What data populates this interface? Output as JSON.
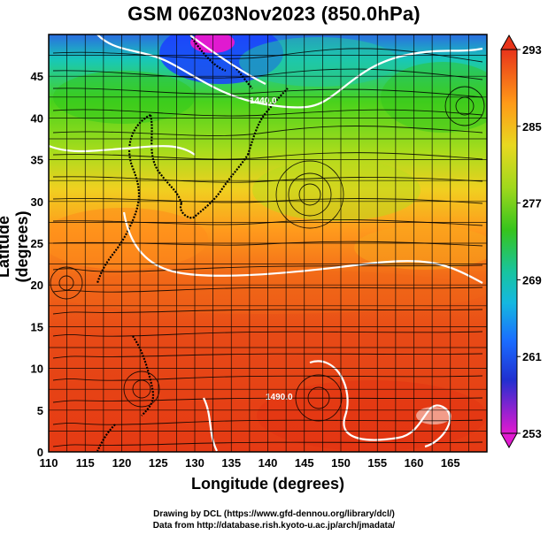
{
  "title": "GSM 06Z03Nov2023 (850.0hPa)",
  "axes": {
    "xlabel": "Longitude (degrees)",
    "ylabel": "Latitude  (degrees)",
    "x_ticks": [
      "110",
      "115",
      "120",
      "125",
      "130",
      "135",
      "140",
      "145",
      "150",
      "155",
      "160",
      "165"
    ],
    "y_ticks": [
      "0",
      "5",
      "10",
      "15",
      "20",
      "25",
      "30",
      "35",
      "40",
      "45"
    ],
    "xlim": [
      110,
      170
    ],
    "ylim": [
      0,
      50
    ]
  },
  "colorbar": {
    "labels": [
      "293",
      "285",
      "277",
      "269",
      "261",
      "253"
    ],
    "range": [
      253,
      293
    ]
  },
  "contour_labels": [
    "1440.0",
    "1490.0"
  ],
  "credits": {
    "line1": "Drawing by DCL (https://www.gfd-dennou.org/library/dcl/)",
    "line2": "Data from http://database.rish.kyoto-u.ac.jp/arch/jmadata/"
  },
  "colors": {
    "warm": "#e53a14",
    "orange": "#ff8c1c",
    "yellow": "#f2d41c",
    "green": "#35c21c",
    "cyan": "#12c2c8",
    "blue": "#1a40ff",
    "magenta": "#e01ad0"
  }
}
